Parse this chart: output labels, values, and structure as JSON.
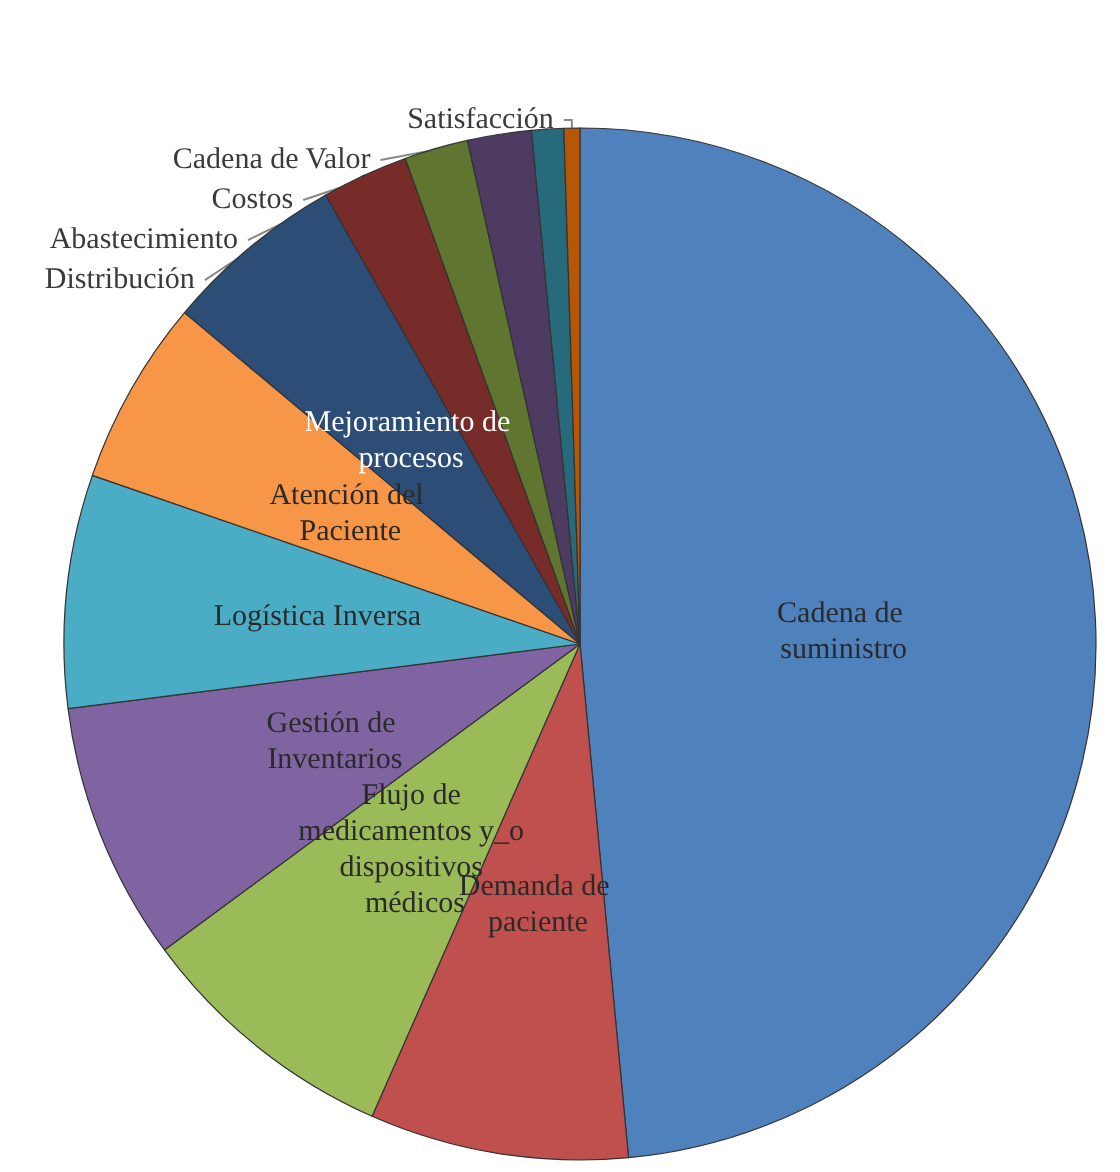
{
  "chart_data": {
    "type": "pie",
    "categories": [
      "Cadena de suministro",
      "Demanda de paciente",
      "Flujo de medicamentos y_o dispositivos médicos",
      "Gestión de Inventarios",
      "Logística Inversa",
      "Atención del Paciente",
      "Mejoramiento de procesos",
      "Distribución",
      "Abastecimiento",
      "Costos",
      "Cadena de Valor",
      "Satisfacción"
    ],
    "values": [
      48.5,
      8.1,
      8.3,
      8.1,
      7.3,
      5.8,
      5.7,
      2.7,
      2.0,
      2.0,
      1.0,
      0.5
    ],
    "colors": [
      "#4f81bd",
      "#c0504d",
      "#9bbb59",
      "#8064a2",
      "#4bacc6",
      "#f79646",
      "#2c4d75",
      "#772c2a",
      "#5f7530",
      "#4d3b62",
      "#276a7c",
      "#b65708"
    ],
    "legend": false
  }
}
